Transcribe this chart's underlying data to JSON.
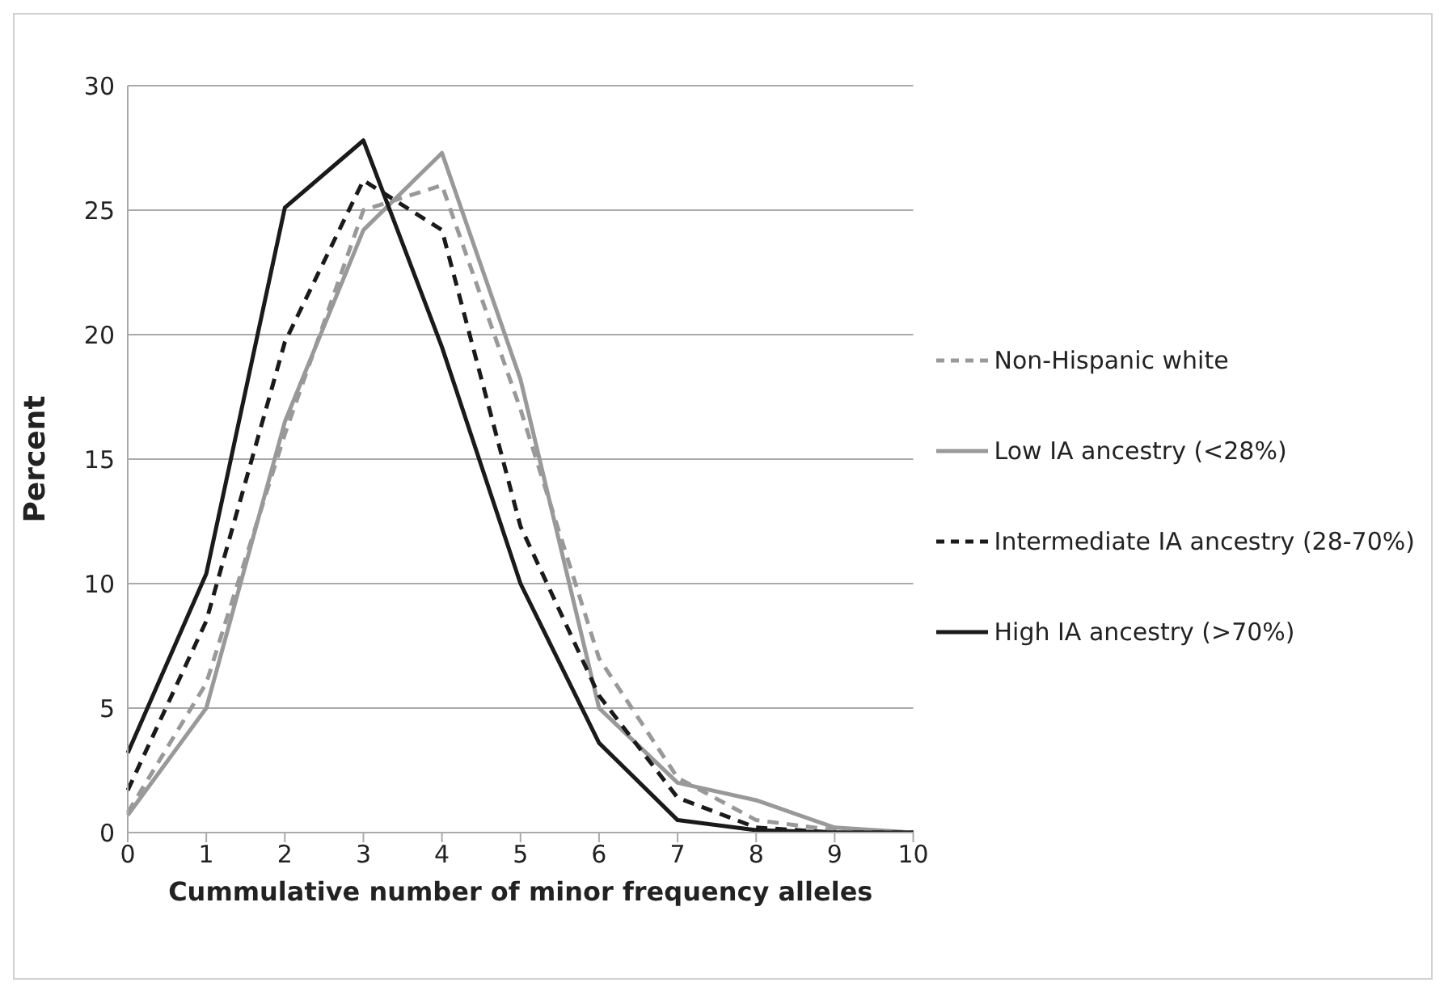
{
  "chart_data": {
    "type": "line",
    "xlabel": "Cummulative number of minor frequency  alleles",
    "ylabel": "Percent",
    "categories": [
      "0",
      "1",
      "2",
      "3",
      "4",
      "5",
      "6",
      "7",
      "8",
      "9",
      "10"
    ],
    "series": [
      {
        "name": "Non-Hispanic white",
        "color": "#999999",
        "line_style": "dashed",
        "values": [
          0.8,
          6,
          16,
          25,
          26,
          17,
          7,
          2.2,
          0.5,
          0.1,
          0
        ]
      },
      {
        "name": "Low IA ancestry (<28%)",
        "color": "#999999",
        "line_style": "solid",
        "values": [
          0.7,
          5,
          16.5,
          24.2,
          27.3,
          18.2,
          5,
          2,
          1.3,
          0.2,
          0
        ]
      },
      {
        "name": "Intermediate IA ancestry (28-70%)",
        "color": "#1a1a1a",
        "line_style": "dashed",
        "values": [
          1.7,
          8.5,
          19.7,
          26.2,
          24.2,
          12.3,
          5.5,
          1.4,
          0.2,
          0,
          0
        ]
      },
      {
        "name": "High IA ancestry (>70%)",
        "color": "#1a1a1a",
        "line_style": "solid",
        "values": [
          3.2,
          10.4,
          25.1,
          27.8,
          19.5,
          10,
          3.6,
          0.5,
          0.1,
          0,
          0
        ]
      }
    ],
    "ylim": [
      0,
      30
    ],
    "yticks": [
      0,
      5,
      10,
      15,
      20,
      25,
      30
    ],
    "grid": "y",
    "legend": "right",
    "marker": "none"
  }
}
